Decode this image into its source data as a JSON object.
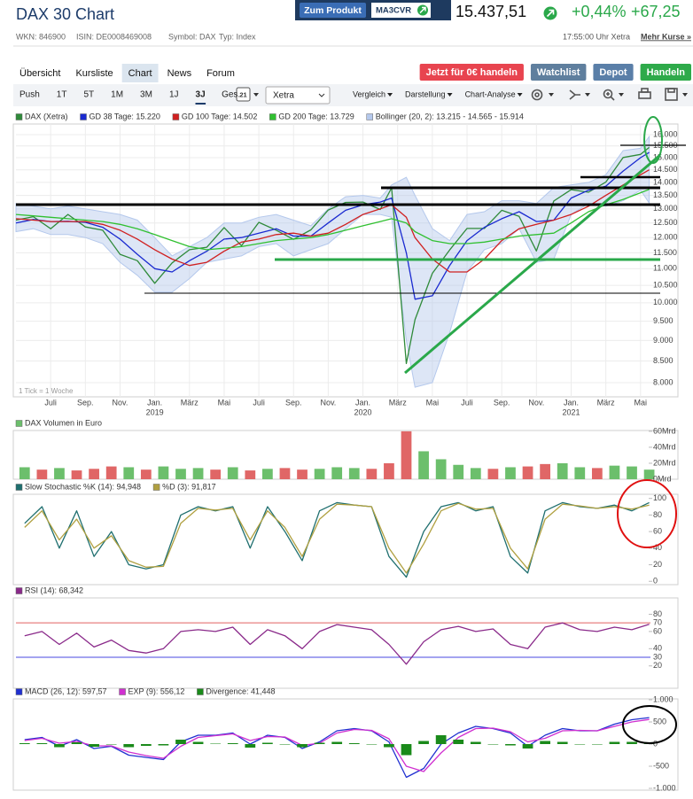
{
  "header": {
    "title": "DAX 30 Chart",
    "product_button": "Zum Produkt",
    "product_code": "MA3CVR",
    "price": "15.437,51",
    "change_pct": "+0,44%",
    "change_abs": "+67,25",
    "wkn": "WKN: 846900",
    "isin": "ISIN: DE0008469008",
    "symbol": "Symbol: DAX",
    "type": "Typ: Index",
    "time": "17:55:00 Uhr Xetra",
    "more": "Mehr Kurse »"
  },
  "tabs": [
    "Übersicht",
    "Kursliste",
    "Chart",
    "News",
    "Forum"
  ],
  "active_tab": 2,
  "buttons": [
    {
      "label": "Jetzt für 0€ handeln",
      "color": "#e8444f"
    },
    {
      "label": "Watchlist",
      "color": "#5f7f9e"
    },
    {
      "label": "Depot",
      "color": "#5a7fa8"
    },
    {
      "label": "Handeln",
      "color": "#2eaa4a"
    }
  ],
  "periods": [
    "Push",
    "1T",
    "5T",
    "1M",
    "3M",
    "1J",
    "3J",
    "Ges."
  ],
  "active_period": 6,
  "toolbar": {
    "calendar": "21",
    "exchange": "Xetra",
    "menus": [
      "Vergleich",
      "Darstellung",
      "Chart-Analyse"
    ]
  },
  "chart_data": [
    {
      "type": "line",
      "log": true,
      "grid": true,
      "note": "1 Tick = 1 Woche",
      "x": [
        0,
        1,
        2,
        3,
        4,
        5,
        6,
        7,
        8,
        9,
        10,
        11,
        12,
        13,
        14,
        15,
        16,
        17,
        18,
        19,
        20,
        21,
        21.65,
        22.5,
        23,
        24,
        25,
        26,
        27,
        28,
        29,
        30,
        31,
        32,
        33,
        34,
        35,
        36,
        36.5
      ],
      "xlim": [
        0,
        37.9
      ],
      "xticks": [
        {
          "value": 2,
          "label": "Juli"
        },
        {
          "value": 4,
          "label": "Sep."
        },
        {
          "value": 6,
          "label": "Nov."
        },
        {
          "value": 8,
          "label": "Jan."
        },
        {
          "value": 10,
          "label": "März"
        },
        {
          "value": 12,
          "label": "Mai"
        },
        {
          "value": 14,
          "label": "Juli"
        },
        {
          "value": 16,
          "label": "Sep."
        },
        {
          "value": 18,
          "label": "Nov."
        },
        {
          "value": 20,
          "label": "Jan."
        },
        {
          "value": 22,
          "label": "März"
        },
        {
          "value": 24,
          "label": "Mai"
        },
        {
          "value": 26,
          "label": "Juli"
        },
        {
          "value": 28,
          "label": "Sep."
        },
        {
          "value": 30,
          "label": "Nov."
        },
        {
          "value": 32,
          "label": "Jan."
        },
        {
          "value": 34,
          "label": "März"
        },
        {
          "value": 36,
          "label": "Mai"
        }
      ],
      "year_labels": [
        {
          "value": 8,
          "label": "2019"
        },
        {
          "value": 20,
          "label": "2020"
        },
        {
          "value": 32,
          "label": "2021"
        }
      ],
      "ylim": [
        7690,
        16480
      ],
      "yticks": [
        {
          "value": 8000,
          "label": "8.000"
        },
        {
          "value": 8500,
          "label": "8.500"
        },
        {
          "value": 9000,
          "label": "9.000"
        },
        {
          "value": 9500,
          "label": "9.500"
        },
        {
          "value": 10000,
          "label": "10.000"
        },
        {
          "value": 10500,
          "label": "10.500"
        },
        {
          "value": 11000,
          "label": "11.000"
        },
        {
          "value": 11500,
          "label": "11.500"
        },
        {
          "value": 12000,
          "label": "12.000"
        },
        {
          "value": 12500,
          "label": "12.500"
        },
        {
          "value": 13000,
          "label": "13.000"
        },
        {
          "value": 13500,
          "label": "13.500"
        },
        {
          "value": 14000,
          "label": "14.000"
        },
        {
          "value": 14500,
          "label": "14.500"
        },
        {
          "value": 15000,
          "label": "15.000"
        },
        {
          "value": 15500,
          "label": "15.500"
        },
        {
          "value": 16000,
          "label": "16.000"
        }
      ],
      "series": [
        {
          "name": "DAX (Xetra)",
          "color": "#2f8a3a",
          "values": [
            12600,
            12720,
            12300,
            12800,
            12360,
            12250,
            11450,
            11250,
            10560,
            11180,
            11600,
            11680,
            12340,
            11730,
            12520,
            12250,
            11940,
            12260,
            12960,
            13240,
            13250,
            12980,
            13790,
            8440,
            9540,
            10860,
            11590,
            12310,
            12310,
            12950,
            12730,
            11560,
            13290,
            13720,
            13620,
            14010,
            15010,
            15140,
            15437.51
          ]
        },
        {
          "name": "GD 38 Tage: 15.220",
          "color": "#1a2ad0",
          "values": [
            12500,
            12620,
            12550,
            12560,
            12520,
            12350,
            11950,
            11450,
            11000,
            10900,
            11250,
            11550,
            11950,
            12000,
            12150,
            12300,
            12050,
            12050,
            12500,
            12950,
            13150,
            13250,
            13400,
            11500,
            10100,
            10200,
            11100,
            11900,
            12350,
            12650,
            12900,
            12550,
            12600,
            13400,
            13700,
            13850,
            14450,
            15000,
            15220
          ]
        },
        {
          "name": "GD 100 Tage: 14.502",
          "color": "#d02020",
          "values": [
            12650,
            12600,
            12550,
            12550,
            12550,
            12450,
            12250,
            11950,
            11600,
            11300,
            11100,
            11200,
            11550,
            11850,
            11950,
            12100,
            12150,
            12050,
            12150,
            12450,
            12800,
            13000,
            13150,
            12700,
            12000,
            11300,
            10900,
            10900,
            11300,
            11900,
            12300,
            12450,
            12600,
            12800,
            13100,
            13500,
            13900,
            14300,
            14502
          ]
        },
        {
          "name": "GD 200 Tage: 13.729",
          "color": "#30c030",
          "values": [
            12800,
            12750,
            12700,
            12650,
            12600,
            12550,
            12450,
            12300,
            12100,
            11900,
            11700,
            11600,
            11650,
            11700,
            11800,
            11900,
            11950,
            12000,
            12100,
            12250,
            12400,
            12550,
            12650,
            12500,
            12200,
            11900,
            11800,
            11800,
            11850,
            11950,
            12050,
            12100,
            12150,
            12500,
            12900,
            13150,
            13350,
            13600,
            13729
          ]
        }
      ],
      "band": {
        "name": "Bollinger (20, 2): 13.215 - 14.565 - 15.914",
        "color": "#b4c8ec",
        "upper": [
          13200,
          13100,
          13000,
          13100,
          13000,
          12900,
          12800,
          12600,
          12000,
          11400,
          11700,
          12000,
          12500,
          12500,
          12700,
          12800,
          12600,
          12400,
          13000,
          13450,
          13500,
          13400,
          13900,
          14200,
          13500,
          12300,
          11900,
          12800,
          12900,
          13300,
          13300,
          13200,
          13800,
          13900,
          14000,
          14300,
          15300,
          15400,
          15914
        ],
        "lower": [
          12200,
          12300,
          12100,
          12100,
          12000,
          11800,
          11200,
          10800,
          10300,
          10300,
          10700,
          11200,
          11300,
          11400,
          11700,
          11800,
          11400,
          11600,
          11800,
          12300,
          12800,
          12800,
          12700,
          9000,
          7900,
          8000,
          9200,
          10900,
          11600,
          11800,
          12300,
          11200,
          11300,
          12800,
          13200,
          13100,
          13300,
          13700,
          13215
        ]
      }
    },
    {
      "type": "bar",
      "title": "DAX Volumen in Euro",
      "color": "#6cbf6c",
      "x": [
        0.5,
        1.5,
        2.5,
        3.5,
        4.5,
        5.5,
        6.5,
        7.5,
        8.5,
        9.5,
        10.5,
        11.5,
        12.5,
        13.5,
        14.5,
        15.5,
        16.5,
        17.5,
        18.5,
        19.5,
        20.5,
        21.5,
        22.5,
        23.5,
        24.5,
        25.5,
        26.5,
        27.5,
        28.5,
        29.5,
        30.5,
        31.5,
        32.5,
        33.5,
        34.5,
        35.5,
        36.5
      ],
      "xlim": [
        0,
        37.9
      ],
      "values": [
        15,
        12,
        14,
        11,
        13,
        16,
        15,
        12,
        16,
        13,
        14,
        12,
        15,
        11,
        13,
        14,
        12,
        13,
        15,
        14,
        13,
        20,
        60,
        35,
        25,
        18,
        14,
        13,
        15,
        16,
        19,
        20,
        15,
        14,
        17,
        16,
        12
      ],
      "colors": [
        "#6cbf6c",
        "#e06666",
        "#6cbf6c",
        "#e06666",
        "#e06666",
        "#e06666",
        "#6cbf6c",
        "#e06666",
        "#6cbf6c",
        "#6cbf6c",
        "#6cbf6c",
        "#e06666",
        "#6cbf6c",
        "#e06666",
        "#6cbf6c",
        "#e06666",
        "#e06666",
        "#6cbf6c",
        "#6cbf6c",
        "#6cbf6c",
        "#e06666",
        "#e06666",
        "#e06666",
        "#6cbf6c",
        "#6cbf6c",
        "#6cbf6c",
        "#6cbf6c",
        "#e06666",
        "#6cbf6c",
        "#e06666",
        "#e06666",
        "#6cbf6c",
        "#6cbf6c",
        "#e06666",
        "#6cbf6c",
        "#6cbf6c",
        "#6cbf6c"
      ],
      "ylim": [
        0,
        61
      ],
      "yticks": [
        {
          "value": 0,
          "label": "0Mrd"
        },
        {
          "value": 20,
          "label": "20Mrd"
        },
        {
          "value": 40,
          "label": "40Mrd"
        },
        {
          "value": 60,
          "label": "60Mrd"
        }
      ]
    },
    {
      "type": "line",
      "x": [
        0.5,
        1.5,
        2.5,
        3.5,
        4.5,
        5.5,
        6.5,
        7.5,
        8.5,
        9.5,
        10.5,
        11.5,
        12.5,
        13.5,
        14.5,
        15.5,
        16.5,
        17.5,
        18.5,
        19.5,
        20.5,
        21.5,
        22.5,
        23.5,
        24.5,
        25.5,
        26.5,
        27.5,
        28.5,
        29.5,
        30.5,
        31.5,
        32.5,
        33.5,
        34.5,
        35.5,
        36.5
      ],
      "xlim": [
        0,
        37.9
      ],
      "ylim": [
        -4,
        105
      ],
      "yticks": [
        0,
        20,
        40,
        60,
        80,
        100
      ],
      "series": [
        {
          "name": "Slow Stochastic %K (14): 94,948",
          "color": "#1f6f6f",
          "values": [
            70,
            90,
            40,
            85,
            30,
            60,
            20,
            15,
            20,
            80,
            90,
            85,
            90,
            40,
            90,
            60,
            25,
            85,
            95,
            92,
            90,
            30,
            5,
            60,
            90,
            95,
            85,
            90,
            30,
            10,
            85,
            95,
            90,
            88,
            92,
            85,
            94.948
          ]
        },
        {
          "name": "%D (3): 91,817",
          "color": "#b0a040",
          "values": [
            65,
            85,
            50,
            75,
            40,
            55,
            25,
            17,
            18,
            70,
            88,
            86,
            88,
            50,
            85,
            65,
            30,
            75,
            93,
            92,
            90,
            40,
            10,
            45,
            85,
            94,
            87,
            88,
            40,
            15,
            75,
            93,
            91,
            88,
            90,
            87,
            91.817
          ]
        }
      ]
    },
    {
      "type": "line",
      "x": [
        0.5,
        1.5,
        2.5,
        3.5,
        4.5,
        5.5,
        6.5,
        7.5,
        8.5,
        9.5,
        10.5,
        11.5,
        12.5,
        13.5,
        14.5,
        15.5,
        16.5,
        17.5,
        18.5,
        19.5,
        20.5,
        21.5,
        22.5,
        23.5,
        24.5,
        25.5,
        26.5,
        27.5,
        28.5,
        29.5,
        30.5,
        31.5,
        32.5,
        33.5,
        34.5,
        35.5,
        36.5
      ],
      "xlim": [
        0,
        37.9
      ],
      "ylim": [
        -6,
        99
      ],
      "yticks": [
        20,
        40,
        60,
        80
      ],
      "levels": [
        {
          "value": 70,
          "color": "#e06060"
        },
        {
          "value": 30,
          "color": "#4a4ae0"
        }
      ],
      "series": [
        {
          "name": "RSI (14): 68,342",
          "color": "#8a2a8a",
          "values": [
            55,
            60,
            45,
            58,
            42,
            50,
            38,
            35,
            40,
            60,
            62,
            60,
            65,
            45,
            62,
            55,
            40,
            60,
            68,
            65,
            62,
            45,
            22,
            48,
            62,
            66,
            60,
            63,
            45,
            40,
            65,
            70,
            62,
            60,
            65,
            62,
            68.342
          ]
        }
      ]
    },
    {
      "type": "line",
      "x": [
        0.5,
        1.5,
        2.5,
        3.5,
        4.5,
        5.5,
        6.5,
        7.5,
        8.5,
        9.5,
        10.5,
        11.5,
        12.5,
        13.5,
        14.5,
        15.5,
        16.5,
        17.5,
        18.5,
        19.5,
        20.5,
        21.5,
        22.5,
        23.5,
        24.5,
        25.5,
        26.5,
        27.5,
        28.5,
        29.5,
        30.5,
        31.5,
        32.5,
        33.5,
        34.5,
        35.5,
        36.5
      ],
      "xlim": [
        0,
        37.9
      ],
      "ylim": [
        -1040,
        1020
      ],
      "yticks": [
        {
          "value": -1000,
          "label": "-1.000"
        },
        -500,
        0,
        500,
        {
          "value": 1000,
          "label": "1.000"
        }
      ],
      "series": [
        {
          "name": "MACD (26, 12): 597,57",
          "color": "#2030d0",
          "values": [
            100,
            150,
            -50,
            100,
            -100,
            -50,
            -250,
            -300,
            -350,
            50,
            200,
            200,
            250,
            0,
            200,
            150,
            -100,
            50,
            300,
            350,
            300,
            50,
            -750,
            -550,
            0,
            250,
            400,
            350,
            250,
            -50,
            200,
            350,
            300,
            300,
            450,
            550,
            597.57
          ]
        },
        {
          "name": "EXP (9): 556,12",
          "color": "#d030d0",
          "values": [
            80,
            130,
            20,
            60,
            -40,
            -40,
            -180,
            -260,
            -320,
            -50,
            150,
            190,
            230,
            80,
            170,
            160,
            -30,
            20,
            250,
            330,
            310,
            120,
            -500,
            -620,
            -200,
            150,
            350,
            360,
            280,
            50,
            130,
            300,
            310,
            300,
            400,
            500,
            556.12
          ]
        },
        {
          "name": "Divergence: 41,448",
          "color": "#1a8a1a",
          "type": "bar",
          "values": [
            20,
            20,
            -70,
            40,
            -60,
            -10,
            -70,
            -40,
            -30,
            100,
            50,
            10,
            20,
            -80,
            30,
            -10,
            -70,
            30,
            50,
            20,
            -10,
            -70,
            -250,
            70,
            200,
            100,
            50,
            -10,
            -30,
            -100,
            70,
            50,
            -10,
            0,
            50,
            50,
            41.448
          ]
        }
      ]
    }
  ]
}
